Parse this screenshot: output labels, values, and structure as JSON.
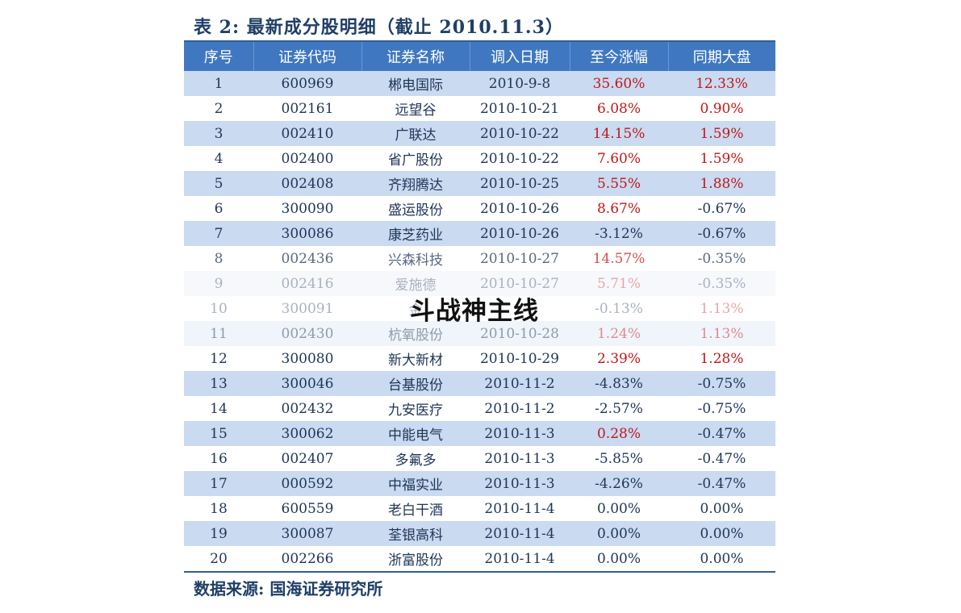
{
  "title": "表 2:  最新成分股明细（截止 2010.11.3）",
  "source": "数据来源:  国海证券研究所",
  "watermark": "斗战神主线",
  "colors": {
    "header_bg": "#3f78c0",
    "band": "#c9daf1",
    "positive": "#c01818",
    "text": "#1f3556"
  },
  "headers": [
    "序号",
    "证券代码",
    "证券名称",
    "调入日期",
    "至今涨幅",
    "同期大盘"
  ],
  "rows": [
    {
      "no": "1",
      "code": "600969",
      "name": "郴电国际",
      "date": "2010-9-8",
      "gain": "35.60%",
      "market": "12.33%",
      "gain_up": true,
      "market_up": true
    },
    {
      "no": "2",
      "code": "002161",
      "name": "远望谷",
      "date": "2010-10-21",
      "gain": "6.08%",
      "market": "0.90%",
      "gain_up": true,
      "market_up": true
    },
    {
      "no": "3",
      "code": "002410",
      "name": "广联达",
      "date": "2010-10-22",
      "gain": "14.15%",
      "market": "1.59%",
      "gain_up": true,
      "market_up": true
    },
    {
      "no": "4",
      "code": "002400",
      "name": "省广股份",
      "date": "2010-10-22",
      "gain": "7.60%",
      "market": "1.59%",
      "gain_up": true,
      "market_up": true
    },
    {
      "no": "5",
      "code": "002408",
      "name": "齐翔腾达",
      "date": "2010-10-25",
      "gain": "5.55%",
      "market": "1.88%",
      "gain_up": true,
      "market_up": true
    },
    {
      "no": "6",
      "code": "300090",
      "name": "盛运股份",
      "date": "2010-10-26",
      "gain": "8.67%",
      "market": "-0.67%",
      "gain_up": true,
      "market_up": false
    },
    {
      "no": "7",
      "code": "300086",
      "name": "康芝药业",
      "date": "2010-10-26",
      "gain": "-3.12%",
      "market": "-0.67%",
      "gain_up": false,
      "market_up": false
    },
    {
      "no": "8",
      "code": "002436",
      "name": "兴森科技",
      "date": "2010-10-27",
      "gain": "14.57%",
      "market": "-0.35%",
      "gain_up": true,
      "market_up": false
    },
    {
      "no": "9",
      "code": "002416",
      "name": "爱施德",
      "date": "2010-10-27",
      "gain": "5.71%",
      "market": "-0.35%",
      "gain_up": true,
      "market_up": false
    },
    {
      "no": "10",
      "code": "300091",
      "name": "金",
      "date": "",
      "gain": "-0.13%",
      "market": "1.13%",
      "gain_up": false,
      "market_up": true
    },
    {
      "no": "11",
      "code": "002430",
      "name": "杭氧股份",
      "date": "2010-10-28",
      "gain": "1.24%",
      "market": "1.13%",
      "gain_up": true,
      "market_up": true
    },
    {
      "no": "12",
      "code": "300080",
      "name": "新大新材",
      "date": "2010-10-29",
      "gain": "2.39%",
      "market": "1.28%",
      "gain_up": true,
      "market_up": true
    },
    {
      "no": "13",
      "code": "300046",
      "name": "台基股份",
      "date": "2010-11-2",
      "gain": "-4.83%",
      "market": "-0.75%",
      "gain_up": false,
      "market_up": false
    },
    {
      "no": "14",
      "code": "002432",
      "name": "九安医疗",
      "date": "2010-11-2",
      "gain": "-2.57%",
      "market": "-0.75%",
      "gain_up": false,
      "market_up": false
    },
    {
      "no": "15",
      "code": "300062",
      "name": "中能电气",
      "date": "2010-11-3",
      "gain": "0.28%",
      "market": "-0.47%",
      "gain_up": true,
      "market_up": false
    },
    {
      "no": "16",
      "code": "002407",
      "name": "多氟多",
      "date": "2010-11-3",
      "gain": "-5.85%",
      "market": "-0.47%",
      "gain_up": false,
      "market_up": false
    },
    {
      "no": "17",
      "code": "000592",
      "name": "中福实业",
      "date": "2010-11-3",
      "gain": "-4.26%",
      "market": "-0.47%",
      "gain_up": false,
      "market_up": false
    },
    {
      "no": "18",
      "code": "600559",
      "name": "老白干酒",
      "date": "2010-11-4",
      "gain": "0.00%",
      "market": "0.00%",
      "gain_up": false,
      "market_up": false
    },
    {
      "no": "19",
      "code": "300087",
      "name": "荃银高科",
      "date": "2010-11-4",
      "gain": "0.00%",
      "market": "0.00%",
      "gain_up": false,
      "market_up": false
    },
    {
      "no": "20",
      "code": "002266",
      "name": "浙富股份",
      "date": "2010-11-4",
      "gain": "0.00%",
      "market": "0.00%",
      "gain_up": false,
      "market_up": false
    }
  ]
}
